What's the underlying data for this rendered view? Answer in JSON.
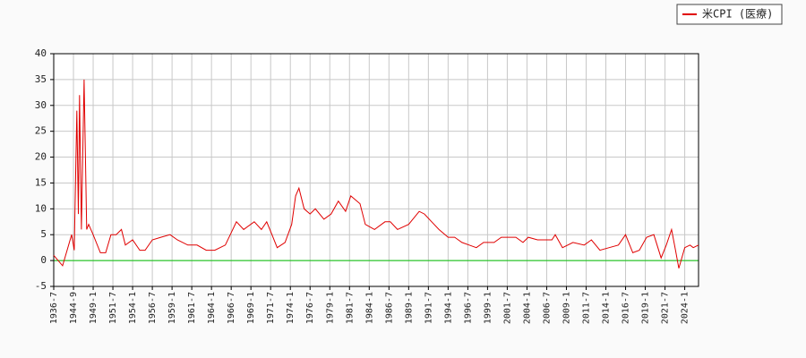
{
  "chart_data": {
    "type": "line",
    "series": [
      {
        "name": "米CPI (医療)",
        "color": "#e00000",
        "x": [
          "1936-7",
          "1938-5",
          "1940-3",
          "1943-12",
          "1944-11",
          "1945-6",
          "1945-10",
          "1946-1",
          "1946-6",
          "1947-1",
          "1947-8",
          "1948-1",
          "1949-1",
          "1949-12",
          "1950-8",
          "1951-4",
          "1951-12",
          "1952-8",
          "1953-2",
          "1954-1",
          "1954-12",
          "1955-8",
          "1956-7",
          "1957-8",
          "1958-10",
          "1959-9",
          "1961-1",
          "1962-3",
          "1963-5",
          "1964-6",
          "1965-10",
          "1967-3",
          "1968-2",
          "1969-6",
          "1970-5",
          "1971-1",
          "1971-9",
          "1972-5",
          "1973-5",
          "1974-3",
          "1974-9",
          "1975-2",
          "1975-10",
          "1976-7",
          "1977-3",
          "1978-4",
          "1979-3",
          "1980-2",
          "1981-1",
          "1981-9",
          "1982-11",
          "1983-7",
          "1984-9",
          "1986-1",
          "1986-9",
          "1987-8",
          "1989-1",
          "1990-5",
          "1991-1",
          "1991-12",
          "1992-11",
          "1994-1",
          "1994-11",
          "1995-10",
          "1996-9",
          "1997-8",
          "1998-7",
          "1999-11",
          "2000-10",
          "2002-8",
          "2003-7",
          "2004-3",
          "2005-5",
          "2007-3",
          "2007-8",
          "2008-7",
          "2009-11",
          "2011-4",
          "2012-3",
          "2013-4",
          "2014-6",
          "2015-8",
          "2016-7",
          "2017-6",
          "2018-4",
          "2019-3",
          "2020-2",
          "2021-1",
          "2021-9",
          "2022-5",
          "2022-11",
          "2023-4",
          "2024-1",
          "2024-9",
          "2025-2",
          "2025-10"
        ],
        "values": [
          1,
          0,
          -1,
          5,
          2,
          29,
          9,
          32,
          6,
          35,
          6,
          7,
          5,
          1.5,
          1.5,
          5,
          5,
          6,
          3,
          4,
          2,
          2,
          4,
          4.5,
          5,
          4,
          3,
          3,
          2,
          2,
          3,
          7.5,
          6,
          7.5,
          6,
          7.5,
          5,
          2.5,
          3.5,
          7,
          12.5,
          14,
          10,
          9,
          10,
          8,
          9,
          11.5,
          9.5,
          12.5,
          11,
          7,
          6,
          7.5,
          7.5,
          6,
          7,
          9.5,
          9,
          7.5,
          6,
          4.5,
          4.5,
          3.5,
          3,
          2.5,
          3.5,
          3.5,
          4.5,
          4.5,
          3.5,
          4.5,
          4,
          4,
          5,
          2.5,
          3.5,
          3,
          4,
          2,
          2.5,
          3,
          5,
          1.5,
          2,
          4.5,
          5,
          0.5,
          3,
          6,
          2,
          -1.5,
          2.5,
          3,
          2.5,
          3
        ]
      }
    ],
    "xlim": [
      "1936-7",
      "2025-10"
    ],
    "xticks": [
      "1936-7",
      "1944-9",
      "1949-1",
      "1951-7",
      "1954-1",
      "1956-7",
      "1959-1",
      "1961-7",
      "1964-1",
      "1966-7",
      "1969-1",
      "1971-7",
      "1974-1",
      "1976-7",
      "1979-1",
      "1981-7",
      "1984-1",
      "1986-7",
      "1989-1",
      "1991-7",
      "1994-1",
      "1996-7",
      "1999-1",
      "2001-7",
      "2004-1",
      "2006-7",
      "2009-1",
      "2011-7",
      "2014-1",
      "2016-7",
      "2019-1",
      "2021-7",
      "2024-1"
    ],
    "ylim": [
      -5,
      40
    ],
    "yticks": [
      -5,
      0,
      5,
      10,
      15,
      20,
      25,
      30,
      35,
      40
    ],
    "grid": true,
    "zero_line_color": "#00c000",
    "legend": "upper right"
  }
}
